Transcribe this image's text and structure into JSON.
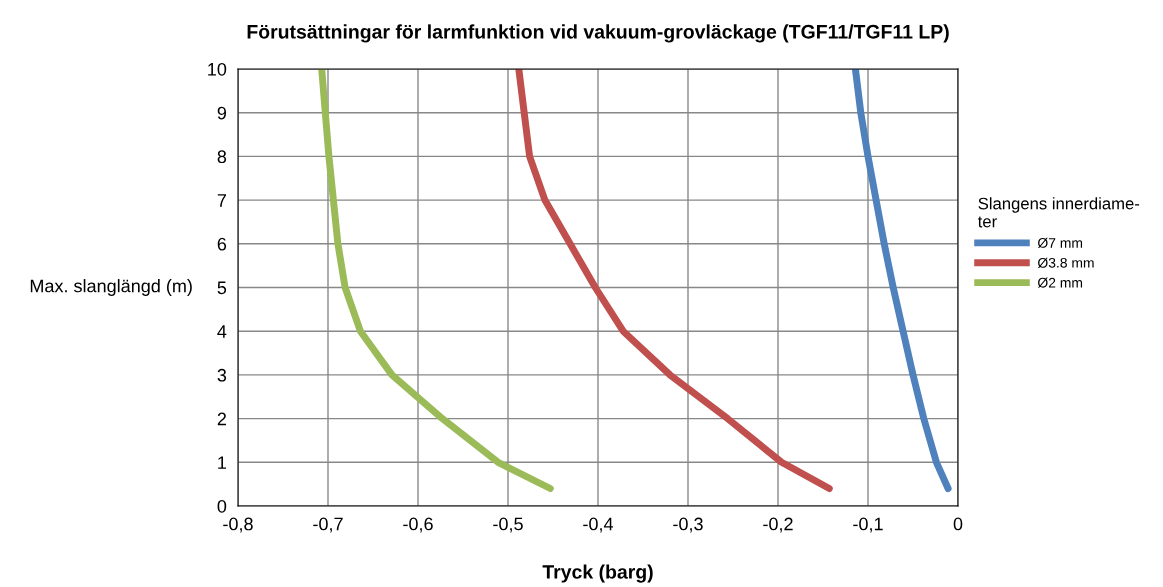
{
  "chart_data": {
    "type": "line",
    "title": "Förutsättningar för larmfunktion vid vakuum-grovläckage (TGF11/TGF11 LP)",
    "xlabel": "Tryck (barg)",
    "ylabel": "Max. slanglängd (m)",
    "legend_title": "Slangens innerdiame-\nter",
    "series": [
      {
        "name": "Ø7 mm",
        "color": "#4f81bd",
        "x": [
          -0.011,
          -0.024,
          -0.038,
          -0.05,
          -0.061,
          -0.072,
          -0.082,
          -0.091,
          -0.1,
          -0.108,
          -0.114
        ],
        "values": [
          0.4,
          1,
          2,
          3,
          4,
          5,
          6,
          7,
          8,
          9,
          10
        ]
      },
      {
        "name": "Ø3.8 mm",
        "color": "#c0504d",
        "x": [
          -0.143,
          -0.196,
          -0.256,
          -0.32,
          -0.372,
          -0.403,
          -0.431,
          -0.459,
          -0.476,
          -0.482,
          -0.488
        ],
        "values": [
          0.4,
          1,
          2,
          3,
          4,
          5,
          6,
          7,
          8,
          9,
          10
        ]
      },
      {
        "name": "Ø2 mm",
        "color": "#9bbb59",
        "x": [
          -0.453,
          -0.511,
          -0.573,
          -0.629,
          -0.664,
          -0.681,
          -0.689,
          -0.694,
          -0.699,
          -0.703,
          -0.707
        ],
        "values": [
          0.4,
          1,
          2,
          3,
          4,
          5,
          6,
          7,
          8,
          9,
          10
        ]
      }
    ],
    "xlim": [
      -0.8,
      0
    ],
    "xticks": [
      {
        "value": -0.8,
        "label": "-0,8"
      },
      {
        "value": -0.7,
        "label": "-0,7"
      },
      {
        "value": -0.6,
        "label": "-0,6"
      },
      {
        "value": -0.5,
        "label": "-0,5"
      },
      {
        "value": -0.4,
        "label": "-0,4"
      },
      {
        "value": -0.3,
        "label": "-0,3"
      },
      {
        "value": -0.2,
        "label": "-0,2"
      },
      {
        "value": -0.1,
        "label": "-0,1"
      },
      0
    ],
    "ylim": [
      0,
      10
    ],
    "yticks": [
      0,
      1,
      2,
      3,
      4,
      5,
      6,
      7,
      8,
      9,
      10
    ],
    "grid": true,
    "legend": "right",
    "marker": "none",
    "line_style": "solid"
  }
}
